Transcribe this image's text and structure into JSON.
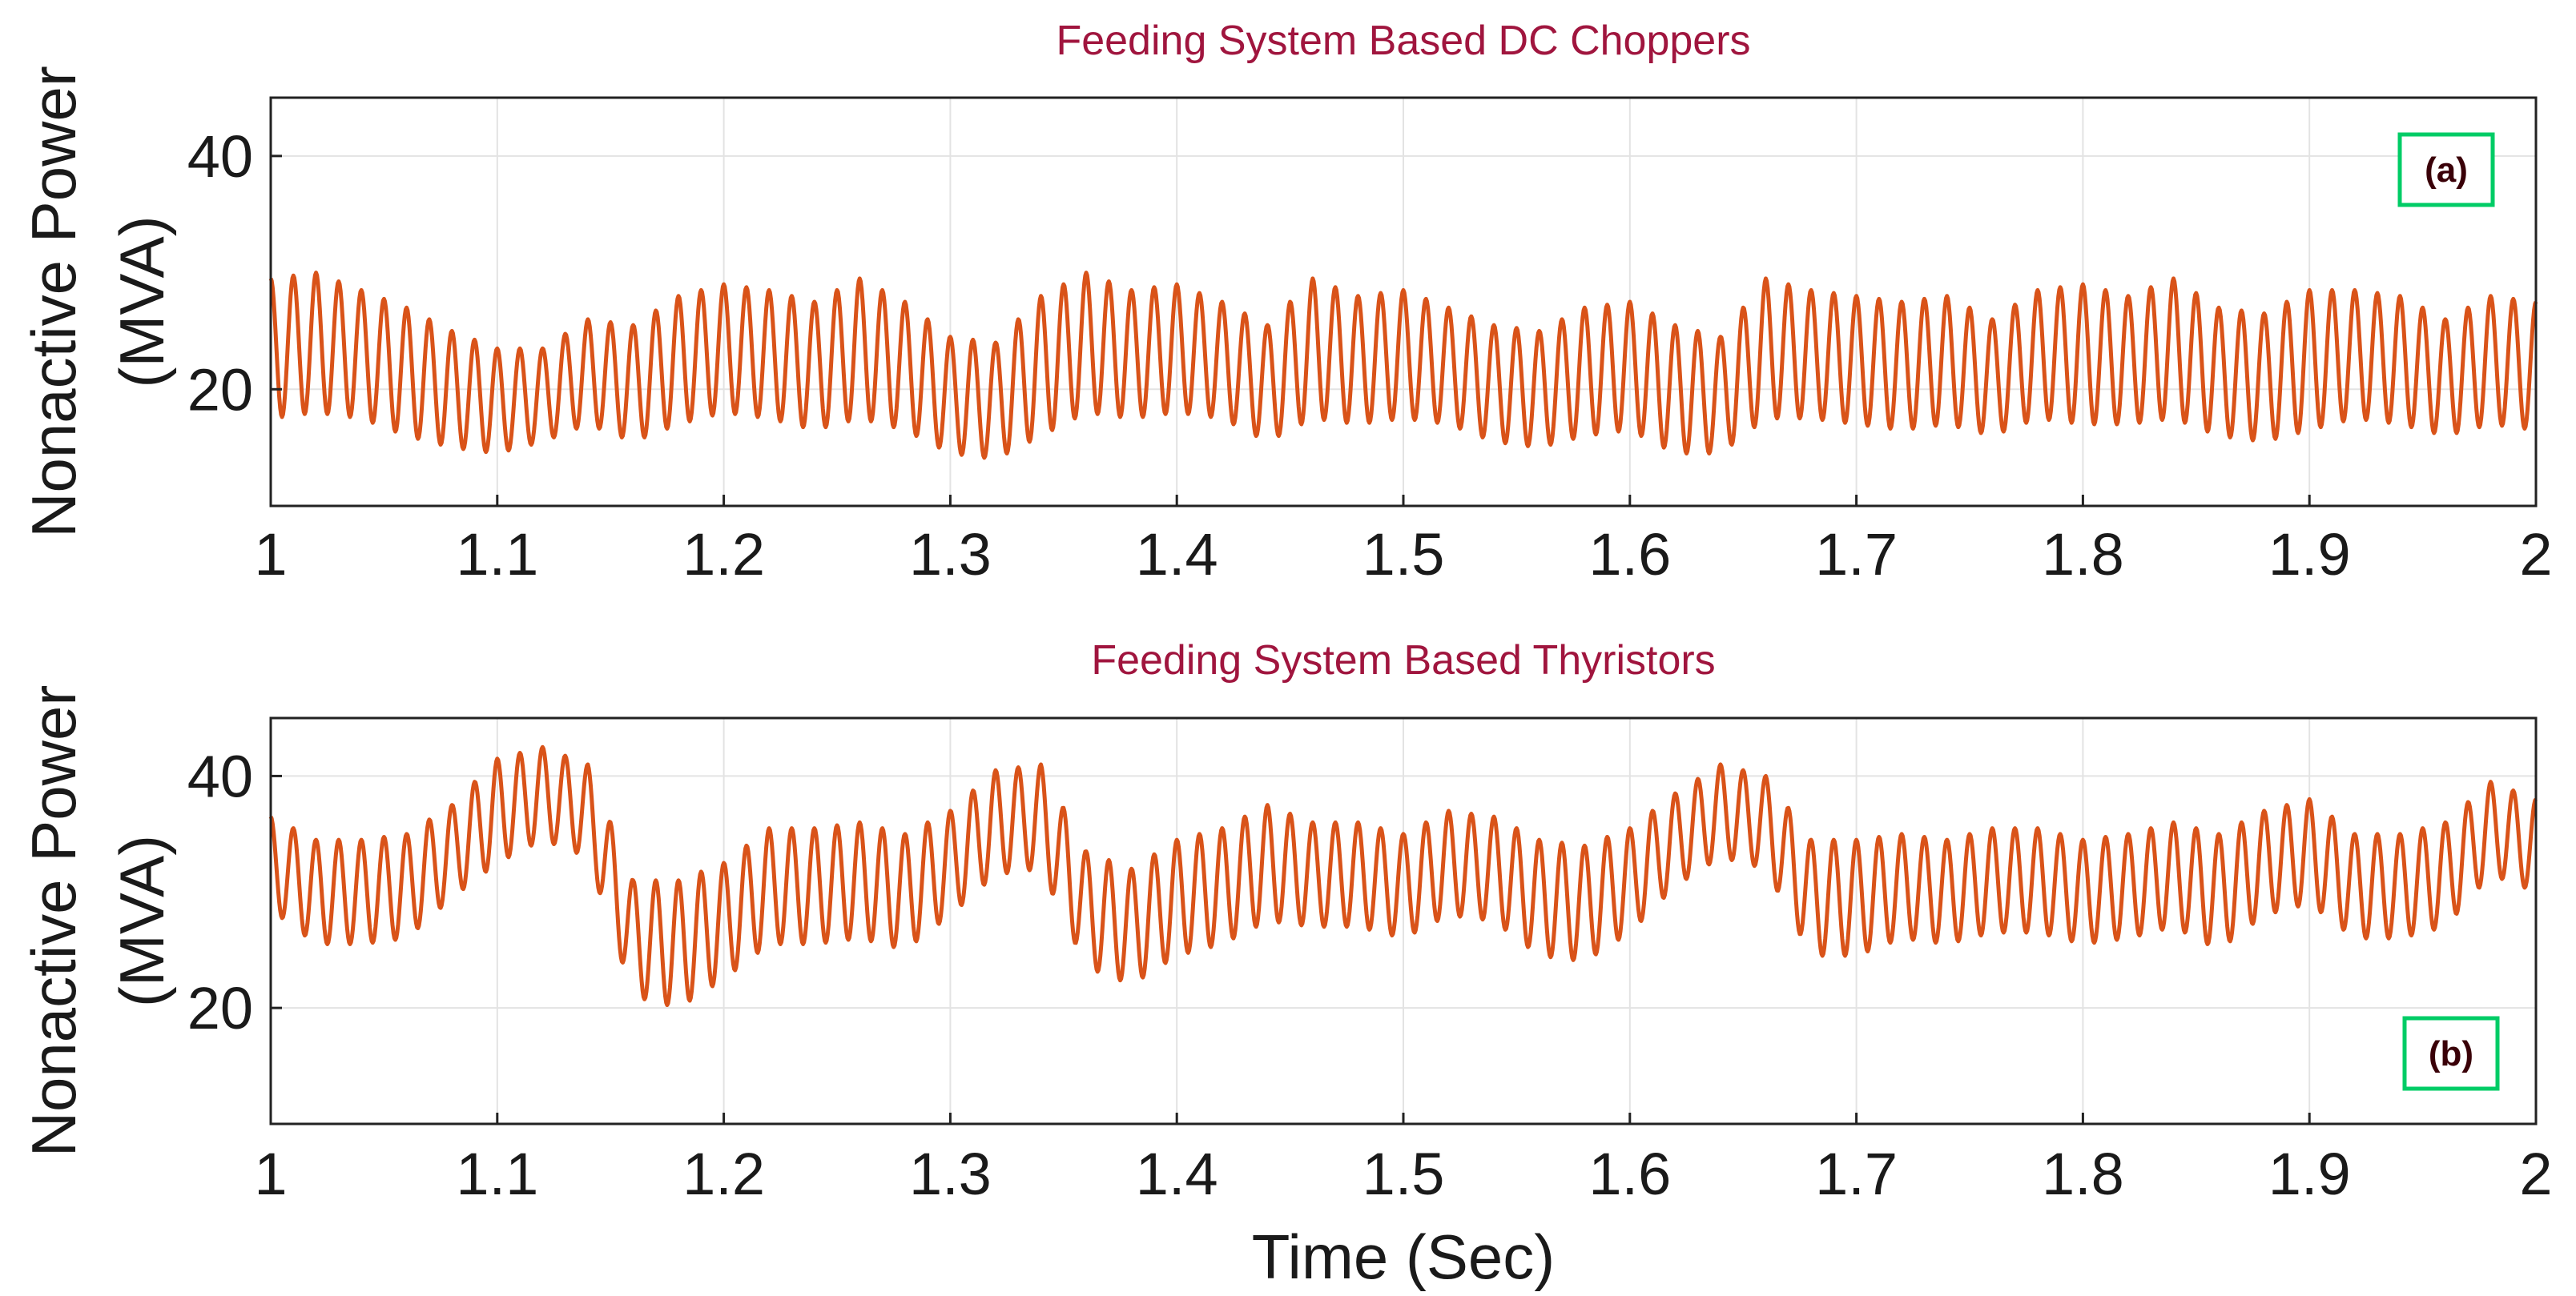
{
  "chart_data": [
    {
      "type": "line",
      "title": "Feeding System Based DC Choppers",
      "ylabel_line1": "Nonactive Power",
      "ylabel_line2": "(MVA)",
      "xlabel": "",
      "xlim": [
        1,
        2
      ],
      "ylim": [
        10,
        45
      ],
      "xticks": [
        "1",
        "1.1",
        "1.2",
        "1.3",
        "1.4",
        "1.5",
        "1.6",
        "1.7",
        "1.8",
        "1.9",
        "2"
      ],
      "yticks": [
        "20",
        "40"
      ],
      "grid": true,
      "badge": "(a)",
      "badge_position": "top-right",
      "series": [
        {
          "name": "Nonactive Power",
          "color": "#D95319",
          "ripple_frequency_hz": 100,
          "x": [
            1.0,
            1.02,
            1.04,
            1.06,
            1.08,
            1.1,
            1.12,
            1.14,
            1.16,
            1.18,
            1.2,
            1.22,
            1.24,
            1.26,
            1.28,
            1.3,
            1.32,
            1.34,
            1.36,
            1.38,
            1.4,
            1.42,
            1.44,
            1.46,
            1.48,
            1.5,
            1.52,
            1.54,
            1.56,
            1.58,
            1.6,
            1.62,
            1.64,
            1.66,
            1.68,
            1.7,
            1.72,
            1.74,
            1.76,
            1.78,
            1.8,
            1.82,
            1.84,
            1.86,
            1.88,
            1.9,
            1.92,
            1.94,
            1.96,
            1.98,
            2.0
          ],
          "center": [
            23.5,
            24.0,
            23.0,
            21.5,
            20.0,
            19.0,
            19.5,
            21.5,
            20.5,
            22.5,
            23.5,
            23.0,
            22.0,
            23.5,
            22.0,
            19.5,
            19.0,
            22.0,
            24.0,
            23.0,
            23.5,
            22.5,
            20.5,
            23.5,
            22.5,
            23.0,
            22.0,
            20.5,
            20.0,
            21.5,
            22.0,
            20.0,
            19.5,
            23.5,
            23.0,
            22.5,
            22.0,
            22.5,
            21.0,
            23.0,
            23.0,
            22.5,
            23.5,
            21.5,
            21.0,
            22.5,
            23.0,
            22.5,
            21.0,
            22.5,
            22.0
          ],
          "amplitude": [
            6.0,
            6.0,
            5.5,
            5.5,
            5.0,
            4.5,
            4.0,
            4.5,
            5.0,
            5.5,
            5.5,
            5.5,
            5.5,
            6.0,
            5.5,
            5.0,
            5.0,
            6.0,
            6.0,
            5.5,
            5.5,
            5.0,
            5.0,
            6.0,
            5.5,
            5.5,
            5.0,
            5.0,
            5.0,
            5.5,
            5.5,
            5.5,
            5.0,
            6.0,
            5.5,
            5.5,
            5.5,
            5.5,
            5.0,
            5.5,
            6.0,
            5.5,
            6.0,
            5.5,
            5.5,
            6.0,
            5.5,
            5.5,
            5.0,
            5.5,
            5.5
          ]
        }
      ]
    },
    {
      "type": "line",
      "title": "Feeding System Based Thyristors",
      "ylabel_line1": "Nonactive Power",
      "ylabel_line2": "(MVA)",
      "xlabel": "Time (Sec)",
      "xlim": [
        1,
        2
      ],
      "ylim": [
        10,
        45
      ],
      "xticks": [
        "1",
        "1.1",
        "1.2",
        "1.3",
        "1.4",
        "1.5",
        "1.6",
        "1.7",
        "1.8",
        "1.9",
        "2"
      ],
      "yticks": [
        "20",
        "40"
      ],
      "grid": true,
      "badge": "(b)",
      "badge_position": "bottom-right",
      "series": [
        {
          "name": "Nonactive Power",
          "color": "#D95319",
          "ripple_frequency_hz": 100,
          "x": [
            1.0,
            1.02,
            1.04,
            1.06,
            1.08,
            1.1,
            1.12,
            1.14,
            1.16,
            1.18,
            1.2,
            1.22,
            1.24,
            1.26,
            1.28,
            1.3,
            1.32,
            1.34,
            1.36,
            1.38,
            1.4,
            1.42,
            1.44,
            1.46,
            1.48,
            1.5,
            1.52,
            1.54,
            1.56,
            1.58,
            1.6,
            1.62,
            1.64,
            1.66,
            1.68,
            1.7,
            1.72,
            1.74,
            1.76,
            1.78,
            1.8,
            1.82,
            1.84,
            1.86,
            1.88,
            1.9,
            1.92,
            1.94,
            1.96,
            1.98,
            2.0
          ],
          "center": [
            32.5,
            30.0,
            30.0,
            30.5,
            33.5,
            37.0,
            38.5,
            37.0,
            26.0,
            25.5,
            27.5,
            30.5,
            30.5,
            31.0,
            30.0,
            32.5,
            36.0,
            36.5,
            28.5,
            27.0,
            29.5,
            30.5,
            32.5,
            31.5,
            31.5,
            30.5,
            32.5,
            32.0,
            29.5,
            29.0,
            31.0,
            34.5,
            37.0,
            36.0,
            29.5,
            29.5,
            30.5,
            30.0,
            31.0,
            31.0,
            30.0,
            30.5,
            31.5,
            30.0,
            32.5,
            33.5,
            30.5,
            30.5,
            31.5,
            35.5,
            34.0
          ],
          "amplitude": [
            4.0,
            4.5,
            4.5,
            4.5,
            4.0,
            4.5,
            4.0,
            4.0,
            5.0,
            5.5,
            5.0,
            5.0,
            5.0,
            5.0,
            5.0,
            4.5,
            4.5,
            4.5,
            5.0,
            5.0,
            5.0,
            5.0,
            5.0,
            4.5,
            4.5,
            4.5,
            4.5,
            4.5,
            5.0,
            5.0,
            4.5,
            4.0,
            4.0,
            4.0,
            5.0,
            5.0,
            4.5,
            4.5,
            4.5,
            4.5,
            4.5,
            4.5,
            4.5,
            5.0,
            4.5,
            4.5,
            4.5,
            4.5,
            4.5,
            4.0,
            4.0
          ]
        }
      ]
    }
  ]
}
